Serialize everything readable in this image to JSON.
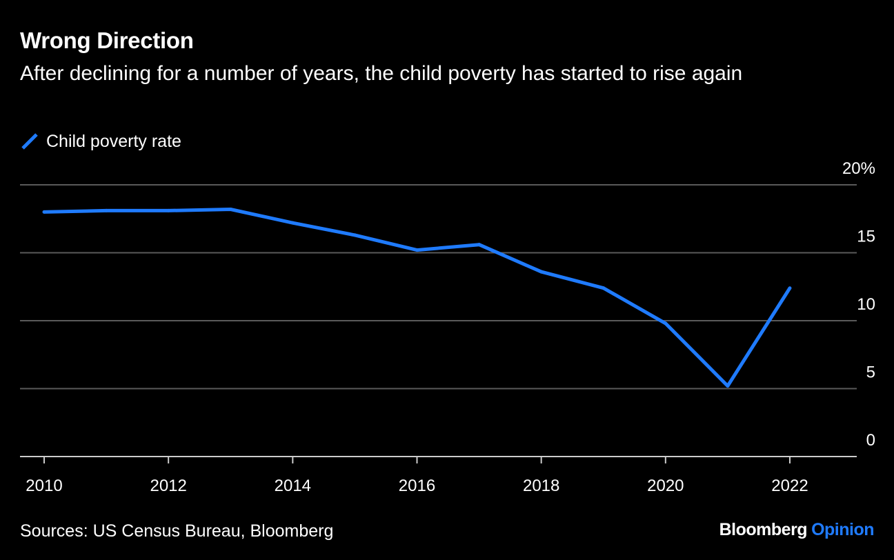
{
  "title": "Wrong Direction",
  "subtitle": "After declining for a number of years, the child poverty has started to rise again",
  "source": "Sources: US Census Bureau, Bloomberg",
  "brand": {
    "name": "Bloomberg",
    "section": "Opinion"
  },
  "colors": {
    "background": "#000000",
    "line": "#1f7bff",
    "grid": "#5a5a5a",
    "axis": "#cccccc",
    "text": "#ffffff"
  },
  "chart_data": {
    "type": "line",
    "title": "Wrong Direction",
    "subtitle": "After declining for a number of years, the child poverty has started to rise again",
    "legend_position": "top-left",
    "grid": true,
    "x": [
      2010,
      2011,
      2012,
      2013,
      2014,
      2015,
      2016,
      2017,
      2018,
      2019,
      2020,
      2021,
      2022
    ],
    "series": [
      {
        "name": "Child poverty rate",
        "color": "#1f7bff",
        "values": [
          18.0,
          18.1,
          18.1,
          18.2,
          17.2,
          16.3,
          15.2,
          15.6,
          13.6,
          12.4,
          9.8,
          5.2,
          12.4
        ]
      }
    ],
    "xlim": [
      2010,
      2022
    ],
    "ylim": [
      0,
      20
    ],
    "x_ticks": [
      "2010",
      "2012",
      "2014",
      "2016",
      "2018",
      "2020",
      "2022"
    ],
    "y_ticks": [
      "0",
      "5",
      "10",
      "15",
      "20%"
    ],
    "y_axis_side": "right"
  }
}
